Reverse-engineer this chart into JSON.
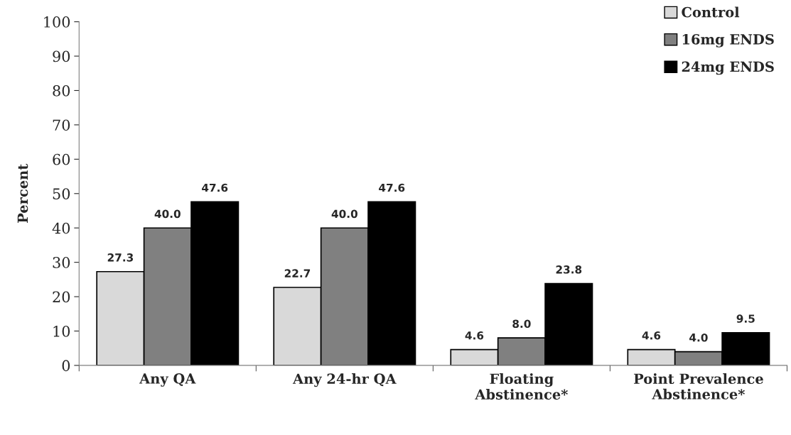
{
  "chart_data": {
    "type": "bar",
    "ylabel": "Percent",
    "categories": [
      "Any QA",
      "Any 24-hr QA",
      "Floating\nAbstinence*",
      "Point Prevalence\nAbstinence*"
    ],
    "series": [
      {
        "name": "Control",
        "color": "#d9d9d9",
        "values": [
          27.3,
          22.7,
          4.6,
          4.6
        ],
        "value_labels": [
          "27.3",
          "22.7",
          "4.6",
          "4.6"
        ]
      },
      {
        "name": "16mg ENDS",
        "color": "#808080",
        "values": [
          40.0,
          40.0,
          8.0,
          4.0
        ],
        "value_labels": [
          "40.0",
          "40.0",
          "8.0",
          "4.0"
        ]
      },
      {
        "name": "24mg ENDS",
        "color": "#000000",
        "values": [
          47.6,
          47.6,
          23.8,
          9.5
        ],
        "value_labels": [
          "47.6",
          "47.6",
          "23.8",
          "9.5"
        ]
      }
    ],
    "ylim": [
      0,
      100
    ],
    "yticks": [
      0,
      10,
      20,
      30,
      40,
      50,
      60,
      70,
      80,
      90,
      100
    ],
    "legend": "top right",
    "grid": false
  }
}
